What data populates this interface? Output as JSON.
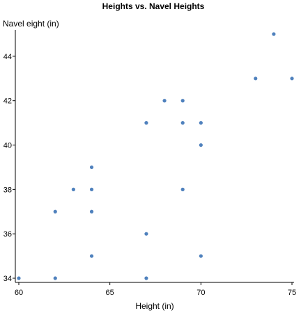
{
  "chart_data": {
    "type": "scatter",
    "title": "Heights vs. Navel Heights",
    "xlabel": "Height (in)",
    "ylabel": "Navel eight (in)",
    "xlim": [
      60,
      75
    ],
    "ylim": [
      34,
      45
    ],
    "xticks": [
      60,
      65,
      70,
      75
    ],
    "yticks": [
      34,
      36,
      38,
      40,
      42,
      44
    ],
    "grid": false,
    "point_color": "#4f81bd",
    "points": [
      {
        "x": 60,
        "y": 34
      },
      {
        "x": 62,
        "y": 34
      },
      {
        "x": 62,
        "y": 37
      },
      {
        "x": 63,
        "y": 38
      },
      {
        "x": 64,
        "y": 35
      },
      {
        "x": 64,
        "y": 37
      },
      {
        "x": 64,
        "y": 38
      },
      {
        "x": 64,
        "y": 39
      },
      {
        "x": 67,
        "y": 34
      },
      {
        "x": 67,
        "y": 36
      },
      {
        "x": 67,
        "y": 41
      },
      {
        "x": 68,
        "y": 42
      },
      {
        "x": 69,
        "y": 38
      },
      {
        "x": 69,
        "y": 41
      },
      {
        "x": 69,
        "y": 42
      },
      {
        "x": 70,
        "y": 35
      },
      {
        "x": 70,
        "y": 40
      },
      {
        "x": 70,
        "y": 41
      },
      {
        "x": 73,
        "y": 43
      },
      {
        "x": 74,
        "y": 45
      },
      {
        "x": 75,
        "y": 43
      }
    ]
  }
}
